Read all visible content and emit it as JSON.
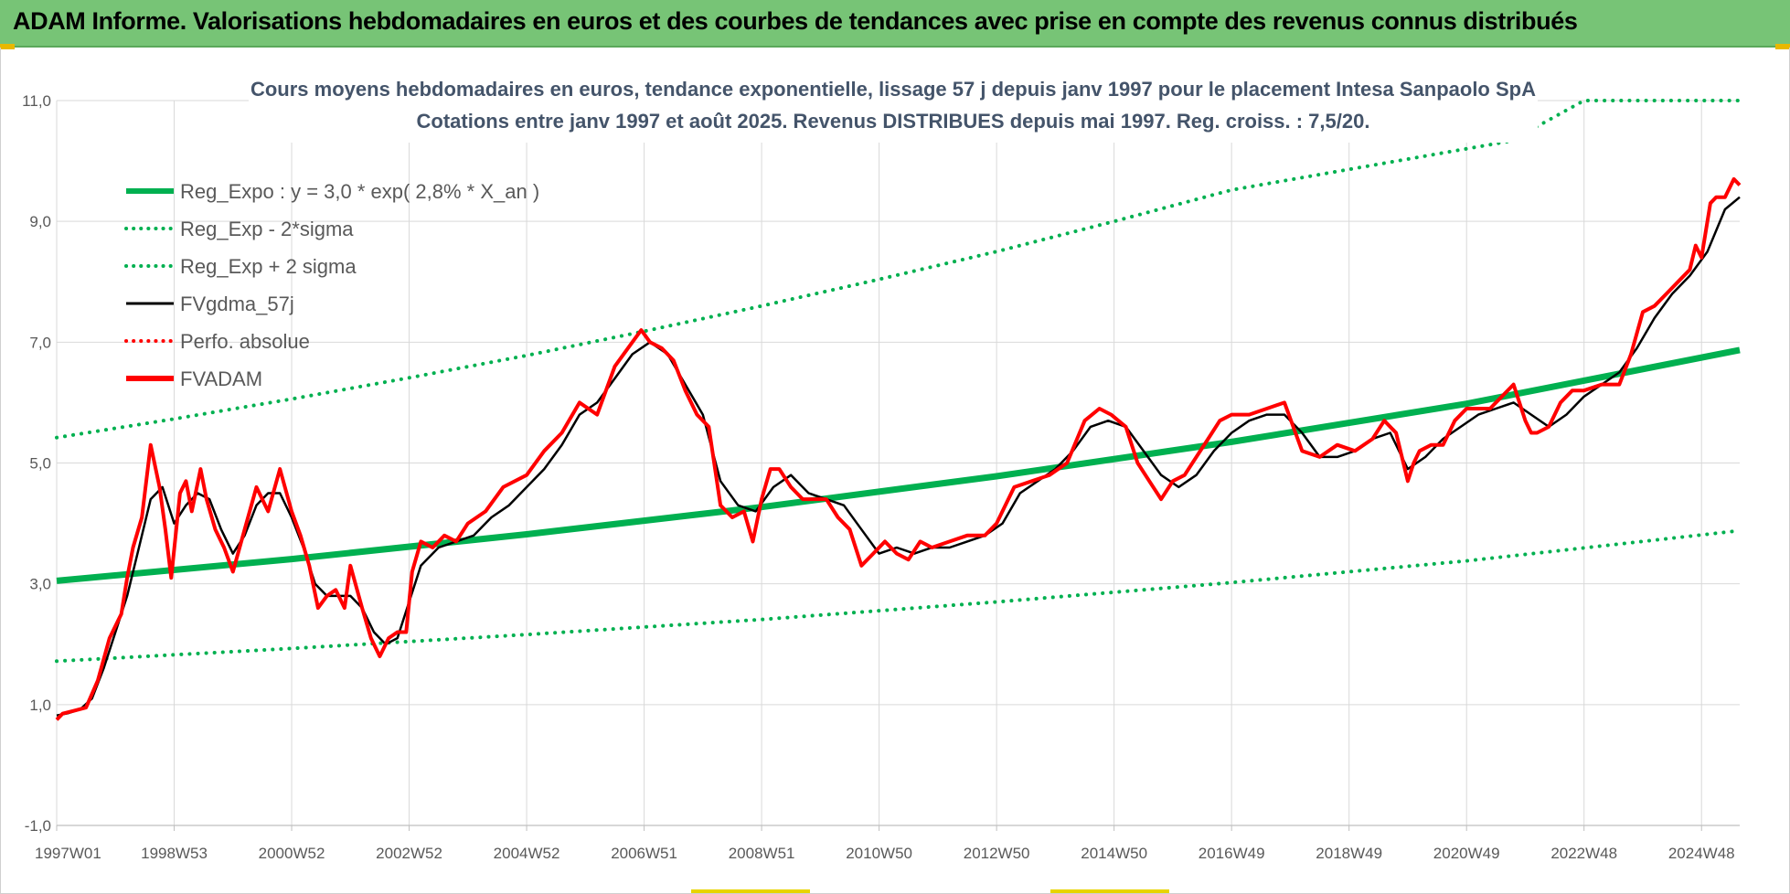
{
  "banner": {
    "title": "ADAM Informe. Valorisations hebdomadaires en euros et des courbes de tendances avec prise en compte des revenus connus distribués"
  },
  "colors": {
    "banner_bg": "#77c476",
    "regression": "#00b050",
    "fv_smooth": "#000000",
    "fv_adam": "#ff0000",
    "perfo": "#ff0000",
    "title_text": "#44546a",
    "grid": "#d9d9d9"
  },
  "chart_data": {
    "type": "line",
    "title_line1": "Cours moyens hebdomadaires en euros, tendance exponentielle, lissage 57 j depuis janv 1997 pour le placement Intesa Sanpaolo SpA",
    "title_line2": "Cotations entre janv 1997 et août 2025. Revenus DISTRIBUES depuis mai 1997. Reg. croiss. : 7,5/20.",
    "xlabel": "",
    "ylabel": "",
    "x_range": [
      1997.0,
      2025.65
    ],
    "ylim": [
      -1,
      11
    ],
    "y_ticks": [
      "-1,0",
      "1,0",
      "3,0",
      "5,0",
      "7,0",
      "9,0",
      "11,0"
    ],
    "y_tick_values": [
      -1,
      1,
      3,
      5,
      7,
      9,
      11
    ],
    "x_tick_labels": [
      "1997W01",
      "1998W53",
      "2000W52",
      "2002W52",
      "2004W52",
      "2006W51",
      "2008W51",
      "2010W50",
      "2012W50",
      "2014W50",
      "2016W49",
      "2018W49",
      "2020W49",
      "2022W48",
      "2024W48"
    ],
    "x_tick_values": [
      1997.0,
      1999.0,
      2001.0,
      2003.0,
      2005.0,
      2007.0,
      2009.0,
      2011.0,
      2013.0,
      2015.0,
      2017.0,
      2019.0,
      2021.0,
      2023.0,
      2025.0
    ],
    "grid": true,
    "legend_position": "top-left",
    "legend": [
      {
        "label": "Reg_Expo : y = 3,0 * exp( 2,8% *  X_an )",
        "style": "solid-thick",
        "color": "#00b050"
      },
      {
        "label": "Reg_Exp - 2*sigma",
        "style": "dotted",
        "color": "#00b050"
      },
      {
        "label": "Reg_Exp + 2 sigma",
        "style": "dotted",
        "color": "#00b050"
      },
      {
        "label": "FVgdma_57j",
        "style": "solid",
        "color": "#000000"
      },
      {
        "label": "Perfo. absolue",
        "style": "dotted",
        "color": "#ff0000"
      },
      {
        "label": "FVADAM",
        "style": "solid-thick",
        "color": "#ff0000"
      }
    ],
    "series": [
      {
        "name": "Reg_Expo : y = 3,0 * exp( 2,8% *  X_an )",
        "x": [
          1997.0,
          2001.0,
          2005.0,
          2009.0,
          2013.0,
          2017.0,
          2021.0,
          2025.65
        ],
        "y": [
          3.05,
          3.41,
          3.82,
          4.27,
          4.78,
          5.35,
          5.98,
          6.87
        ]
      },
      {
        "name": "Reg_Exp - 2*sigma",
        "x": [
          1997.0,
          2001.0,
          2005.0,
          2009.0,
          2013.0,
          2017.0,
          2021.0,
          2025.65
        ],
        "y": [
          1.72,
          1.93,
          2.16,
          2.41,
          2.7,
          3.02,
          3.38,
          3.88
        ]
      },
      {
        "name": "Reg_Exp + 2 sigma",
        "x": [
          1997.0,
          1999.0,
          2001.0,
          2003.0,
          2005.0,
          2007.0,
          2009.0,
          2011.0,
          2013.0,
          2015.0,
          2017.0,
          2021.75,
          2023.0,
          2025.65
        ],
        "y": [
          5.42,
          5.73,
          6.06,
          6.41,
          6.78,
          7.18,
          7.6,
          8.04,
          8.5,
          9.0,
          9.52,
          10.33,
          11.0,
          11.0
        ]
      },
      {
        "name": "FVADAM",
        "x": [
          1997.0,
          1997.1,
          1997.3,
          1997.5,
          1997.7,
          1997.9,
          1998.1,
          1998.2,
          1998.3,
          1998.45,
          1998.6,
          1998.75,
          1998.85,
          1998.95,
          1999.1,
          1999.2,
          1999.3,
          1999.45,
          1999.55,
          1999.7,
          1999.85,
          2000.0,
          2000.2,
          2000.4,
          2000.6,
          2000.8,
          2001.0,
          2001.15,
          2001.3,
          2001.45,
          2001.6,
          2001.75,
          2001.9,
          2002.0,
          2002.2,
          2002.35,
          2002.5,
          2002.65,
          2002.8,
          2002.95,
          2003.05,
          2003.2,
          2003.4,
          2003.6,
          2003.8,
          2004.0,
          2004.3,
          2004.6,
          2005.0,
          2005.3,
          2005.6,
          2005.9,
          2006.2,
          2006.5,
          2006.8,
          2006.95,
          2007.1,
          2007.3,
          2007.5,
          2007.7,
          2007.9,
          2008.1,
          2008.3,
          2008.5,
          2008.7,
          2008.85,
          2009.0,
          2009.15,
          2009.3,
          2009.5,
          2009.7,
          2009.9,
          2010.1,
          2010.3,
          2010.5,
          2010.7,
          2010.9,
          2011.1,
          2011.3,
          2011.5,
          2011.7,
          2011.9,
          2012.2,
          2012.5,
          2012.8,
          2013.0,
          2013.3,
          2013.6,
          2013.9,
          2014.2,
          2014.5,
          2014.75,
          2014.95,
          2015.2,
          2015.4,
          2015.6,
          2015.8,
          2016.0,
          2016.2,
          2016.4,
          2016.6,
          2016.8,
          2017.0,
          2017.3,
          2017.6,
          2017.9,
          2018.2,
          2018.5,
          2018.8,
          2019.1,
          2019.4,
          2019.6,
          2019.8,
          2020.0,
          2020.1,
          2020.2,
          2020.4,
          2020.6,
          2020.8,
          2021.0,
          2021.2,
          2021.4,
          2021.6,
          2021.8,
          2022.0,
          2022.1,
          2022.2,
          2022.4,
          2022.6,
          2022.8,
          2023.0,
          2023.3,
          2023.6,
          2023.8,
          2024.0,
          2024.2,
          2024.4,
          2024.6,
          2024.8,
          2024.9,
          2025.0,
          2025.15,
          2025.25,
          2025.4,
          2025.55,
          2025.65
        ],
        "y": [
          0.75,
          0.85,
          0.9,
          0.95,
          1.4,
          2.1,
          2.5,
          3.1,
          3.6,
          4.1,
          5.3,
          4.6,
          3.9,
          3.1,
          4.5,
          4.7,
          4.2,
          4.9,
          4.4,
          3.9,
          3.6,
          3.2,
          3.9,
          4.6,
          4.2,
          4.9,
          4.2,
          3.8,
          3.3,
          2.6,
          2.8,
          2.9,
          2.6,
          3.3,
          2.6,
          2.1,
          1.8,
          2.1,
          2.2,
          2.2,
          3.2,
          3.7,
          3.6,
          3.8,
          3.7,
          4.0,
          4.2,
          4.6,
          4.8,
          5.2,
          5.5,
          6.0,
          5.8,
          6.6,
          7.0,
          7.2,
          7.0,
          6.9,
          6.7,
          6.2,
          5.8,
          5.6,
          4.3,
          4.1,
          4.2,
          3.7,
          4.4,
          4.9,
          4.9,
          4.6,
          4.4,
          4.4,
          4.4,
          4.1,
          3.9,
          3.3,
          3.5,
          3.7,
          3.5,
          3.4,
          3.7,
          3.6,
          3.7,
          3.8,
          3.8,
          4.0,
          4.6,
          4.7,
          4.8,
          5.0,
          5.7,
          5.9,
          5.8,
          5.6,
          5.0,
          4.7,
          4.4,
          4.7,
          4.8,
          5.1,
          5.4,
          5.7,
          5.8,
          5.8,
          5.9,
          6.0,
          5.2,
          5.1,
          5.3,
          5.2,
          5.4,
          5.7,
          5.5,
          4.7,
          5.0,
          5.2,
          5.3,
          5.3,
          5.7,
          5.9,
          5.9,
          5.9,
          6.1,
          6.3,
          5.7,
          5.5,
          5.5,
          5.6,
          6.0,
          6.2,
          6.2,
          6.3,
          6.3,
          6.8,
          7.5,
          7.6,
          7.8,
          8.0,
          8.2,
          8.6,
          8.4,
          9.3,
          9.4,
          9.4,
          9.7,
          9.6
        ],
        "width": 4
      },
      {
        "name": "FVgdma_57j",
        "x": [
          1997.0,
          1997.2,
          1997.4,
          1997.6,
          1997.8,
          1998.0,
          1998.2,
          1998.4,
          1998.6,
          1998.8,
          1999.0,
          1999.2,
          1999.4,
          1999.6,
          1999.8,
          2000.0,
          2000.2,
          2000.4,
          2000.6,
          2000.8,
          2001.0,
          2001.2,
          2001.4,
          2001.6,
          2001.8,
          2002.0,
          2002.2,
          2002.4,
          2002.6,
          2002.8,
          2003.0,
          2003.2,
          2003.5,
          2003.8,
          2004.1,
          2004.4,
          2004.7,
          2005.0,
          2005.3,
          2005.6,
          2005.9,
          2006.2,
          2006.5,
          2006.8,
          2007.1,
          2007.4,
          2007.7,
          2008.0,
          2008.3,
          2008.6,
          2008.9,
          2009.2,
          2009.5,
          2009.8,
          2010.1,
          2010.4,
          2010.7,
          2011.0,
          2011.3,
          2011.6,
          2011.9,
          2012.2,
          2012.5,
          2012.8,
          2013.1,
          2013.4,
          2013.7,
          2014.0,
          2014.3,
          2014.6,
          2014.9,
          2015.2,
          2015.5,
          2015.8,
          2016.1,
          2016.4,
          2016.7,
          2017.0,
          2017.3,
          2017.6,
          2017.9,
          2018.2,
          2018.5,
          2018.8,
          2019.1,
          2019.4,
          2019.7,
          2020.0,
          2020.3,
          2020.6,
          2020.9,
          2021.2,
          2021.5,
          2021.8,
          2022.1,
          2022.4,
          2022.7,
          2023.0,
          2023.3,
          2023.6,
          2023.9,
          2024.2,
          2024.5,
          2024.8,
          2025.1,
          2025.4,
          2025.65
        ],
        "y": [
          0.82,
          0.86,
          0.92,
          1.1,
          1.6,
          2.2,
          2.8,
          3.6,
          4.4,
          4.6,
          4.0,
          4.3,
          4.5,
          4.4,
          3.9,
          3.5,
          3.8,
          4.3,
          4.5,
          4.5,
          4.1,
          3.6,
          3.0,
          2.8,
          2.8,
          2.8,
          2.6,
          2.2,
          2.0,
          2.1,
          2.7,
          3.3,
          3.6,
          3.7,
          3.8,
          4.1,
          4.3,
          4.6,
          4.9,
          5.3,
          5.8,
          6.0,
          6.4,
          6.8,
          7.0,
          6.8,
          6.3,
          5.8,
          4.7,
          4.3,
          4.2,
          4.6,
          4.8,
          4.5,
          4.4,
          4.3,
          3.9,
          3.5,
          3.6,
          3.5,
          3.6,
          3.6,
          3.7,
          3.8,
          4.0,
          4.5,
          4.7,
          4.9,
          5.2,
          5.6,
          5.7,
          5.6,
          5.2,
          4.8,
          4.6,
          4.8,
          5.2,
          5.5,
          5.7,
          5.8,
          5.8,
          5.5,
          5.1,
          5.1,
          5.2,
          5.4,
          5.5,
          4.9,
          5.1,
          5.4,
          5.6,
          5.8,
          5.9,
          6.0,
          5.8,
          5.6,
          5.8,
          6.1,
          6.3,
          6.5,
          6.9,
          7.4,
          7.8,
          8.1,
          8.5,
          9.2,
          9.4
        ],
        "width": 2.5
      }
    ]
  }
}
